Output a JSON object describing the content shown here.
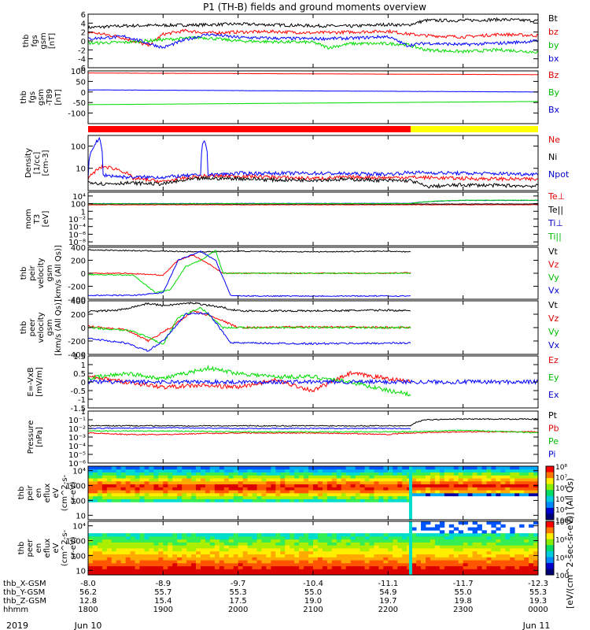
{
  "figure": {
    "title": "P1 (TH-B) fields and ground moments overview",
    "date_left": "2019",
    "date_mid": "Jun 10",
    "date_right": "Jun 11",
    "colorbar_label": "[eV/(cm^2-sec-sr-eV)] (All Qs)"
  },
  "time_axis": {
    "tick_hours": [
      18,
      19,
      20,
      21,
      22,
      23,
      24
    ],
    "rows": [
      {
        "label": "thb_X-GSM",
        "values": [
          "-8.0",
          "-8.9",
          "-9.7",
          "-10.4",
          "-11.1",
          "-11.7",
          "-12.3"
        ]
      },
      {
        "label": "thb_Y-GSM",
        "values": [
          "56.2",
          "55.7",
          "55.3",
          "55.0",
          "54.9",
          "55.0",
          "55.3"
        ]
      },
      {
        "label": "thb_Z-GSM",
        "values": [
          "12.8",
          "15.4",
          "17.5",
          "19.0",
          "19.7",
          "19.8",
          "19.3"
        ]
      },
      {
        "label": "hhmm",
        "values": [
          "1800",
          "1900",
          "2000",
          "2100",
          "2200",
          "2300",
          "0000"
        ]
      }
    ]
  },
  "colors": {
    "black": "#000000",
    "red": "#ff0000",
    "green": "#00dd00",
    "blue": "#0000ff",
    "yellow": "#ffff00",
    "cyan": "#00ddcc"
  },
  "chart_data": [
    {
      "type": "line",
      "id": "fgs",
      "ylabel": [
        "thb",
        "fgs",
        "gsm",
        "[nT]"
      ],
      "ylim": [
        -6,
        6
      ],
      "log": false,
      "ticks": [
        -6,
        -4,
        -2,
        0,
        2,
        4,
        6
      ],
      "series": [
        {
          "name": "Bt",
          "color": "black",
          "x": [
            18.0,
            18.5,
            19.0,
            19.5,
            20.0,
            20.5,
            21.0,
            21.5,
            22.0,
            22.25,
            22.5,
            23.0,
            23.5,
            24.0
          ],
          "y": [
            3.0,
            3.4,
            3.5,
            3.6,
            3.8,
            3.6,
            3.4,
            3.3,
            3.7,
            3.5,
            4.6,
            4.6,
            4.8,
            4.5
          ]
        },
        {
          "name": "bz",
          "color": "red",
          "x": [
            18.0,
            18.4,
            18.8,
            19.0,
            19.3,
            19.6,
            20.0,
            20.5,
            21.0,
            21.5,
            22.0,
            22.25,
            22.5,
            23.0,
            23.5,
            24.0
          ],
          "y": [
            2.0,
            1.0,
            -1.0,
            1.5,
            2.3,
            1.8,
            2.0,
            2.1,
            1.8,
            2.0,
            2.2,
            1.6,
            1.2,
            0.9,
            1.5,
            1.2
          ]
        },
        {
          "name": "by",
          "color": "green",
          "x": [
            18.0,
            18.5,
            19.0,
            19.5,
            20.0,
            20.5,
            21.0,
            21.2,
            21.5,
            22.0,
            22.25,
            22.5,
            23.0,
            23.5,
            24.0
          ],
          "y": [
            -0.5,
            -0.3,
            0.3,
            0.8,
            0.0,
            -0.2,
            -0.3,
            -1.5,
            -0.6,
            -0.6,
            -0.8,
            -2.0,
            -2.4,
            -2.0,
            -2.5
          ]
        },
        {
          "name": "bx",
          "color": "blue",
          "x": [
            18.0,
            18.5,
            19.0,
            19.3,
            19.6,
            20.0,
            20.5,
            21.0,
            21.5,
            22.0,
            22.25,
            22.5,
            23.0,
            23.5,
            24.0
          ],
          "y": [
            0.5,
            1.0,
            -1.5,
            0.3,
            1.5,
            0.8,
            0.6,
            0.5,
            0.6,
            1.0,
            -1.0,
            -0.5,
            -0.8,
            -0.5,
            0.0
          ]
        }
      ]
    },
    {
      "type": "line",
      "id": "fgs_sm",
      "ylabel": [
        "thb",
        "fgs",
        "gsm",
        "-T89",
        "[nT]"
      ],
      "ylim": [
        -150,
        100
      ],
      "log": false,
      "ticks": [
        -100,
        -50,
        0,
        50,
        100
      ],
      "series": [
        {
          "name": "Bz",
          "color": "red",
          "x": [
            18.0,
            24.0
          ],
          "y": [
            90,
            82
          ]
        },
        {
          "name": "By",
          "color": "green",
          "x": [
            18.0,
            24.0
          ],
          "y": [
            -60,
            -45
          ]
        },
        {
          "name": "Bx",
          "color": "blue",
          "x": [
            18.0,
            24.0
          ],
          "y": [
            10,
            0
          ]
        }
      ]
    },
    {
      "type": "bar",
      "id": "region_bar",
      "segments": [
        {
          "start": 18.0,
          "end": 22.3,
          "color": "red"
        },
        {
          "start": 22.3,
          "end": 24.0,
          "color": "yellow"
        }
      ]
    },
    {
      "type": "line",
      "id": "density",
      "ylabel": [
        "Density",
        "[1/cc]",
        "[cm-3]"
      ],
      "ylim": [
        1,
        300
      ],
      "log": true,
      "ticks": [
        10,
        100
      ],
      "series": [
        {
          "name": "Ne",
          "color": "red",
          "x": [
            18.0,
            18.2,
            18.4,
            18.6,
            19.0,
            19.5,
            20.0,
            20.5,
            21.0,
            21.5,
            22.0,
            22.3,
            23.0,
            24.0
          ],
          "y": [
            3.0,
            12,
            9,
            3.5,
            2.5,
            4.5,
            4.5,
            4.0,
            3.5,
            4.0,
            3.8,
            4.0,
            3.5,
            3.2
          ]
        },
        {
          "name": "Ni",
          "color": "black",
          "x": [
            18.0,
            18.2,
            18.5,
            19.0,
            19.5,
            20.0,
            20.5,
            21.0,
            21.5,
            22.0,
            22.3,
            22.5,
            23.0,
            24.0
          ],
          "y": [
            2.5,
            2.0,
            2.2,
            2.0,
            3.5,
            3.5,
            3.0,
            3.0,
            3.2,
            2.8,
            2.8,
            1.5,
            1.8,
            1.6
          ]
        },
        {
          "name": "Npot",
          "color": "blue",
          "x": [
            18.0,
            18.15,
            18.2,
            18.5,
            19.0,
            19.5,
            19.55,
            19.6,
            20.0,
            21.0,
            22.0,
            22.3,
            23.0,
            24.0
          ],
          "y": [
            3.5,
            200,
            5,
            4,
            4,
            5,
            200,
            5,
            6,
            6,
            5.5,
            6.5,
            6.0,
            5.5
          ]
        }
      ]
    },
    {
      "type": "line",
      "id": "temperature",
      "ylabel": [
        "mom",
        "T3",
        "[eV]"
      ],
      "ylim": [
        1e-09,
        100000
      ],
      "log": true,
      "ticks": [
        1e-08,
        1e-06,
        0.0001,
        0.01,
        1,
        100,
        10000
      ],
      "series": [
        {
          "name": "Te⊥",
          "color": "red",
          "x": [
            18.0,
            24.0
          ],
          "y": [
            50,
            50
          ]
        },
        {
          "name": "Te||",
          "color": "black",
          "x": [
            18.0,
            24.0
          ],
          "y": [
            80,
            80
          ]
        },
        {
          "name": "Ti⊥",
          "color": "blue",
          "x": [
            18.0,
            22.3,
            23.0,
            24.0
          ],
          "y": [
            100,
            120,
            700,
            700
          ]
        },
        {
          "name": "Ti||",
          "color": "green",
          "x": [
            18.0,
            22.3,
            23.0,
            24.0
          ],
          "y": [
            90,
            100,
            800,
            800
          ]
        }
      ]
    },
    {
      "type": "line",
      "id": "ion_velocity",
      "ylabel": [
        "thb",
        "peir",
        "velocity",
        "gsm",
        "[km/s (All Qs)]"
      ],
      "ylim": [
        -400,
        400
      ],
      "log": false,
      "ticks": [
        -400,
        -200,
        0,
        200,
        400
      ],
      "series": [
        {
          "name": "Vt",
          "color": "black",
          "x": [
            18.0,
            18.5,
            19.0,
            19.5,
            20.0,
            21.0,
            22.0,
            22.3
          ],
          "y": [
            360,
            350,
            340,
            330,
            340,
            330,
            340,
            330
          ]
        },
        {
          "name": "Vz",
          "color": "red",
          "x": [
            18.0,
            18.5,
            19.0,
            19.2,
            19.4,
            19.6,
            19.8,
            20.0,
            21.0,
            22.0,
            22.3
          ],
          "y": [
            0,
            0,
            -30,
            200,
            280,
            150,
            0,
            0,
            0,
            0,
            10
          ]
        },
        {
          "name": "Vy",
          "color": "green",
          "x": [
            18.0,
            18.6,
            18.9,
            19.1,
            19.3,
            19.5,
            19.7,
            19.8,
            20.0,
            21.0,
            22.3
          ],
          "y": [
            -20,
            -30,
            -300,
            -250,
            100,
            200,
            350,
            0,
            0,
            0,
            0
          ]
        },
        {
          "name": "Vx",
          "color": "blue",
          "x": [
            18.0,
            18.6,
            19.0,
            19.2,
            19.5,
            19.7,
            19.9,
            20.0,
            21.0,
            22.3
          ],
          "y": [
            -340,
            -340,
            -300,
            200,
            340,
            200,
            -340,
            -350,
            -350,
            -350
          ]
        }
      ]
    },
    {
      "type": "line",
      "id": "electron_velocity",
      "ylabel": [
        "thb",
        "peer",
        "velocity",
        "gsm",
        "[km/s (All Qs)]"
      ],
      "ylim": [
        -400,
        400
      ],
      "log": false,
      "ticks": [
        -400,
        -200,
        0,
        200,
        400
      ],
      "series": [
        {
          "name": "Vt",
          "color": "black",
          "x": [
            18.0,
            18.4,
            18.8,
            19.0,
            19.4,
            19.8,
            20.0,
            21.0,
            22.0,
            22.3
          ],
          "y": [
            240,
            260,
            360,
            330,
            370,
            300,
            250,
            250,
            260,
            250
          ]
        },
        {
          "name": "Vz",
          "color": "red",
          "x": [
            18.0,
            18.5,
            18.8,
            19.1,
            19.4,
            19.7,
            20.0,
            21.0,
            22.3
          ],
          "y": [
            20,
            -30,
            -200,
            0,
            250,
            150,
            0,
            10,
            0
          ]
        },
        {
          "name": "Vy",
          "color": "green",
          "x": [
            18.0,
            18.6,
            19.0,
            19.2,
            19.5,
            19.8,
            20.0,
            21.0,
            22.3
          ],
          "y": [
            0,
            -50,
            -250,
            150,
            300,
            0,
            0,
            0,
            0
          ]
        },
        {
          "name": "Vx",
          "color": "blue",
          "x": [
            18.0,
            18.5,
            18.8,
            19.0,
            19.3,
            19.6,
            19.9,
            20.0,
            21.0,
            22.3
          ],
          "y": [
            -160,
            -230,
            -350,
            -200,
            200,
            220,
            -220,
            -230,
            -240,
            -230
          ]
        }
      ]
    },
    {
      "type": "line",
      "id": "efield",
      "ylabel": [
        "E=-VxB",
        "[mV/m]"
      ],
      "ylim": [
        -1.5,
        1.5
      ],
      "log": false,
      "ticks": [
        -1.5,
        -1.0,
        -0.5,
        0.0,
        0.5,
        1.0,
        1.5
      ],
      "series": [
        {
          "name": "Ez",
          "color": "red",
          "x": [
            18.0,
            18.5,
            19.0,
            19.5,
            20.0,
            20.5,
            21.0,
            21.5,
            22.0,
            22.3
          ],
          "y": [
            0.3,
            0.0,
            -0.3,
            -0.2,
            -0.3,
            0.1,
            -0.5,
            0.5,
            0.2,
            0.0
          ]
        },
        {
          "name": "Ey",
          "color": "green",
          "x": [
            18.0,
            18.5,
            19.0,
            19.3,
            19.6,
            20.0,
            20.5,
            21.0,
            21.5,
            22.0,
            22.3
          ],
          "y": [
            0.2,
            0.5,
            0.2,
            0.5,
            0.8,
            0.5,
            0.3,
            0.3,
            0.0,
            -0.5,
            -0.7
          ]
        },
        {
          "name": "Ex",
          "color": "blue",
          "x": [
            18.0,
            22.3,
            23.0,
            24.0
          ],
          "y": [
            0.0,
            0.0,
            0.0,
            0.0
          ]
        }
      ]
    },
    {
      "type": "line",
      "id": "pressure",
      "ylabel": [
        "Pressure",
        "[nPa]"
      ],
      "ylim": [
        1e-06,
        1
      ],
      "log": true,
      "ticks": [
        1e-06,
        1e-05,
        0.0001,
        0.001,
        0.01,
        0.1,
        1
      ],
      "series": [
        {
          "name": "Pt",
          "color": "black",
          "x": [
            18.0,
            20.0,
            22.0,
            22.3,
            22.5,
            23.0,
            24.0
          ],
          "y": [
            0.02,
            0.02,
            0.02,
            0.02,
            0.1,
            0.12,
            0.12
          ]
        },
        {
          "name": "Pb",
          "color": "red",
          "x": [
            18.0,
            18.5,
            19.0,
            20.0,
            21.0,
            22.0,
            22.3,
            23.0,
            24.0
          ],
          "y": [
            0.003,
            0.002,
            0.002,
            0.003,
            0.003,
            0.002,
            0.003,
            0.004,
            0.004
          ]
        },
        {
          "name": "Pe",
          "color": "green",
          "x": [
            18.0,
            19.0,
            20.0,
            21.0,
            22.0,
            22.3,
            23.0,
            24.0
          ],
          "y": [
            0.005,
            0.005,
            0.004,
            0.004,
            0.004,
            0.004,
            0.006,
            0.003
          ]
        },
        {
          "name": "Pi",
          "color": "blue",
          "x": [
            18.0,
            19.0,
            20.0,
            21.0,
            22.0,
            22.3
          ],
          "y": [
            0.01,
            0.012,
            0.01,
            0.01,
            0.01,
            0.01
          ]
        }
      ]
    },
    {
      "type": "heatmap",
      "id": "ion_spectrogram",
      "ylabel": [
        "thb",
        "peir",
        "en",
        "eflux",
        "eV",
        "(cm^2-s-",
        "sr-eV)"
      ],
      "ylim": [
        5,
        20000
      ],
      "log": true,
      "ticks": [
        10,
        100,
        1000,
        10000
      ]
    },
    {
      "type": "heatmap",
      "id": "electron_spectrogram",
      "ylabel": [
        "thb",
        "peer",
        "en",
        "eflux",
        "eV",
        "(cm^2-s-",
        "sr-eV)"
      ],
      "ylim": [
        5,
        20000
      ],
      "log": true,
      "ticks": [
        10,
        100,
        1000,
        10000
      ]
    }
  ],
  "colorbars": [
    {
      "id": "ion_cb",
      "ticks": [
        3,
        4,
        5,
        6,
        7,
        8
      ]
    },
    {
      "id": "ele_cb",
      "ticks": [
        2,
        4,
        6,
        8
      ]
    }
  ]
}
